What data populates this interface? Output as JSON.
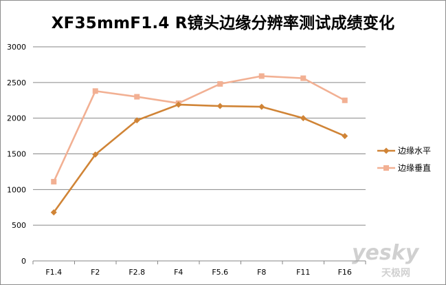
{
  "chart_data": {
    "type": "line",
    "title": "XF35mmF1.4 R镜头边缘分辨率测试成绩变化",
    "xlabel": "",
    "ylabel": "",
    "categories": [
      "F1.4",
      "F2",
      "F2.8",
      "F4",
      "F5.6",
      "F8",
      "F11",
      "F16"
    ],
    "ylim": [
      0,
      3000
    ],
    "yticks": [
      0,
      500,
      1000,
      1500,
      2000,
      2500,
      3000
    ],
    "grid": true,
    "legend_position": "right",
    "series": [
      {
        "name": "边缘水平",
        "color": "#d08436",
        "marker": "diamond",
        "values": [
          680,
          1490,
          1970,
          2190,
          2170,
          2160,
          2000,
          1750
        ]
      },
      {
        "name": "边缘垂直",
        "color": "#f2b093",
        "marker": "square",
        "values": [
          1110,
          2380,
          2300,
          2210,
          2480,
          2590,
          2560,
          2250
        ]
      }
    ]
  },
  "watermark": {
    "main": "yesky",
    "sub": "天极网"
  }
}
